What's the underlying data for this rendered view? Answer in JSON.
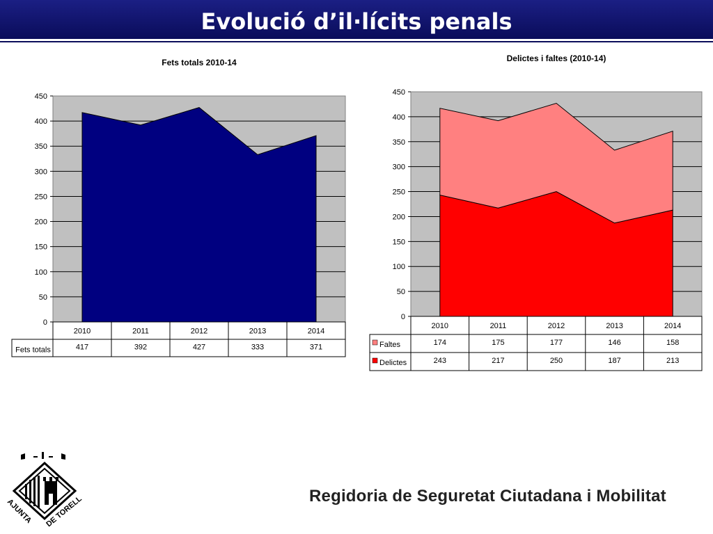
{
  "header": {
    "title": "Evolució d’il·lícits penals"
  },
  "footer": {
    "text": "Regidoria de Seguretat Ciutadana i Mobilitat"
  },
  "logo": {
    "top_text": "AJUNTAMENT",
    "bottom_text": "DE TORELLÓ"
  },
  "colors": {
    "header_bg": "#12146e",
    "fets": "#000080",
    "faltes": "#ff8080",
    "delictes": "#ff0000",
    "plot_bg": "#c0c0c0"
  },
  "chart_data": [
    {
      "type": "area",
      "title": "Fets totals 2010-14",
      "categories": [
        "2010",
        "2011",
        "2012",
        "2013",
        "2014"
      ],
      "ylim": [
        0,
        450
      ],
      "yticks": [
        "0",
        "50",
        "100",
        "150",
        "200",
        "250",
        "300",
        "350",
        "400",
        "450"
      ],
      "grid": true,
      "series": [
        {
          "name": "Fets totals",
          "values": [
            417,
            392,
            427,
            333,
            371
          ],
          "color": "#000080"
        }
      ],
      "table": {
        "rows": [
          {
            "label": "Fets totals",
            "values": [
              "417",
              "392",
              "427",
              "333",
              "371"
            ]
          }
        ]
      }
    },
    {
      "type": "area",
      "stacked": true,
      "title": "Delictes i faltes (2010-14)",
      "categories": [
        "2010",
        "2011",
        "2012",
        "2013",
        "2014"
      ],
      "ylim": [
        0,
        450
      ],
      "yticks": [
        "0",
        "50",
        "100",
        "150",
        "200",
        "250",
        "300",
        "350",
        "400",
        "450"
      ],
      "grid": true,
      "series": [
        {
          "name": "Delictes",
          "values": [
            243,
            217,
            250,
            187,
            213
          ],
          "color": "#ff0000"
        },
        {
          "name": "Faltes",
          "values": [
            174,
            175,
            177,
            146,
            158
          ],
          "color": "#ff8080"
        }
      ],
      "table": {
        "rows": [
          {
            "label": "Faltes",
            "values": [
              "174",
              "175",
              "177",
              "146",
              "158"
            ],
            "color": "#ff8080"
          },
          {
            "label": "Delictes",
            "values": [
              "243",
              "217",
              "250",
              "187",
              "213"
            ],
            "color": "#ff0000"
          }
        ]
      }
    }
  ]
}
